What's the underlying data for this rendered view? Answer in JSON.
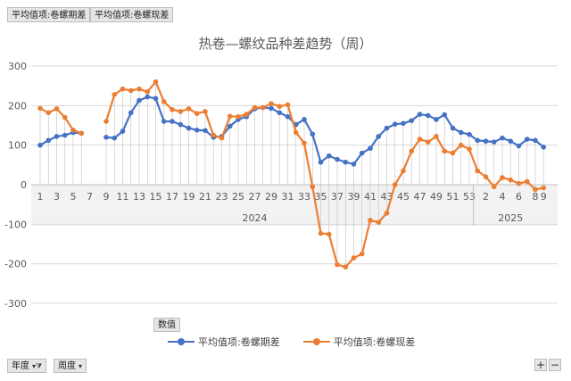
{
  "pivot": {
    "filters": [
      "平均值项:卷螺期差",
      "平均值项:卷螺现差"
    ],
    "values_button": "数值",
    "row_fields": [
      {
        "label": "年度",
        "glyph": "▾⧩"
      },
      {
        "label": "周度",
        "glyph": "▾"
      }
    ],
    "expand_label": "+",
    "collapse_label": "−"
  },
  "colors": {
    "series1": "#4472c4",
    "series2": "#ed7d31"
  },
  "chart_data": {
    "type": "line",
    "title": "热卷—螺纹品种差趋势（周）",
    "ylim": [
      -300,
      300
    ],
    "yticks": [
      -300,
      -200,
      -100,
      0,
      100,
      200,
      300
    ],
    "grid": true,
    "legend": "bottom",
    "groups": [
      {
        "label": "2024",
        "weeks": [
          "1",
          "2",
          "3",
          "4",
          "5",
          "6",
          "7",
          "8",
          "9",
          "10",
          "11",
          "12",
          "13",
          "14",
          "15",
          "16",
          "17",
          "18",
          "19",
          "20",
          "21",
          "22",
          "23",
          "24",
          "25",
          "26",
          "27",
          "28",
          "29",
          "30",
          "31",
          "32",
          "33",
          "34",
          "35",
          "36",
          "37",
          "38",
          "39",
          "40",
          "41",
          "42",
          "43",
          "44",
          "45",
          "46",
          "47",
          "48",
          "49",
          "50",
          "51",
          "52",
          "53"
        ]
      },
      {
        "label": "2025",
        "weeks": [
          "1",
          "2",
          "3",
          "4",
          "5",
          "6",
          "7",
          "8",
          "9"
        ]
      }
    ],
    "xtick_labels": [
      "1",
      "3",
      "5",
      "7",
      "9",
      "11",
      "13",
      "15",
      "17",
      "19",
      "21",
      "23",
      "25",
      "27",
      "29",
      "31",
      "33",
      "35",
      "37",
      "39",
      "41",
      "43",
      "45",
      "47",
      "49",
      "51",
      "53",
      "2",
      "4",
      "6",
      "8",
      "9"
    ],
    "series": [
      {
        "name": "平均值项:卷螺期差",
        "values": [
          100,
          112,
          122,
          125,
          132,
          130,
          null,
          null,
          120,
          118,
          135,
          182,
          213,
          222,
          218,
          160,
          160,
          152,
          143,
          138,
          137,
          120,
          122,
          148,
          165,
          172,
          192,
          195,
          193,
          182,
          172,
          152,
          165,
          128,
          57,
          73,
          64,
          57,
          52,
          80,
          92,
          122,
          143,
          153,
          155,
          162,
          178,
          175,
          165,
          177,
          143,
          132,
          127,
          112,
          110,
          108,
          118,
          110,
          98,
          115,
          112,
          95
        ]
      },
      {
        "name": "平均值项:卷螺现差",
        "values": [
          193,
          182,
          192,
          170,
          138,
          130,
          null,
          null,
          160,
          228,
          242,
          238,
          242,
          235,
          260,
          210,
          190,
          185,
          192,
          180,
          185,
          125,
          118,
          173,
          172,
          178,
          195,
          195,
          205,
          198,
          202,
          132,
          105,
          -5,
          -123,
          -125,
          -202,
          -208,
          -185,
          -175,
          -90,
          -95,
          -72,
          0,
          35,
          85,
          115,
          108,
          122,
          85,
          80,
          100,
          90,
          35,
          20,
          -5,
          18,
          12,
          3,
          8,
          -12,
          -8
        ]
      }
    ]
  }
}
